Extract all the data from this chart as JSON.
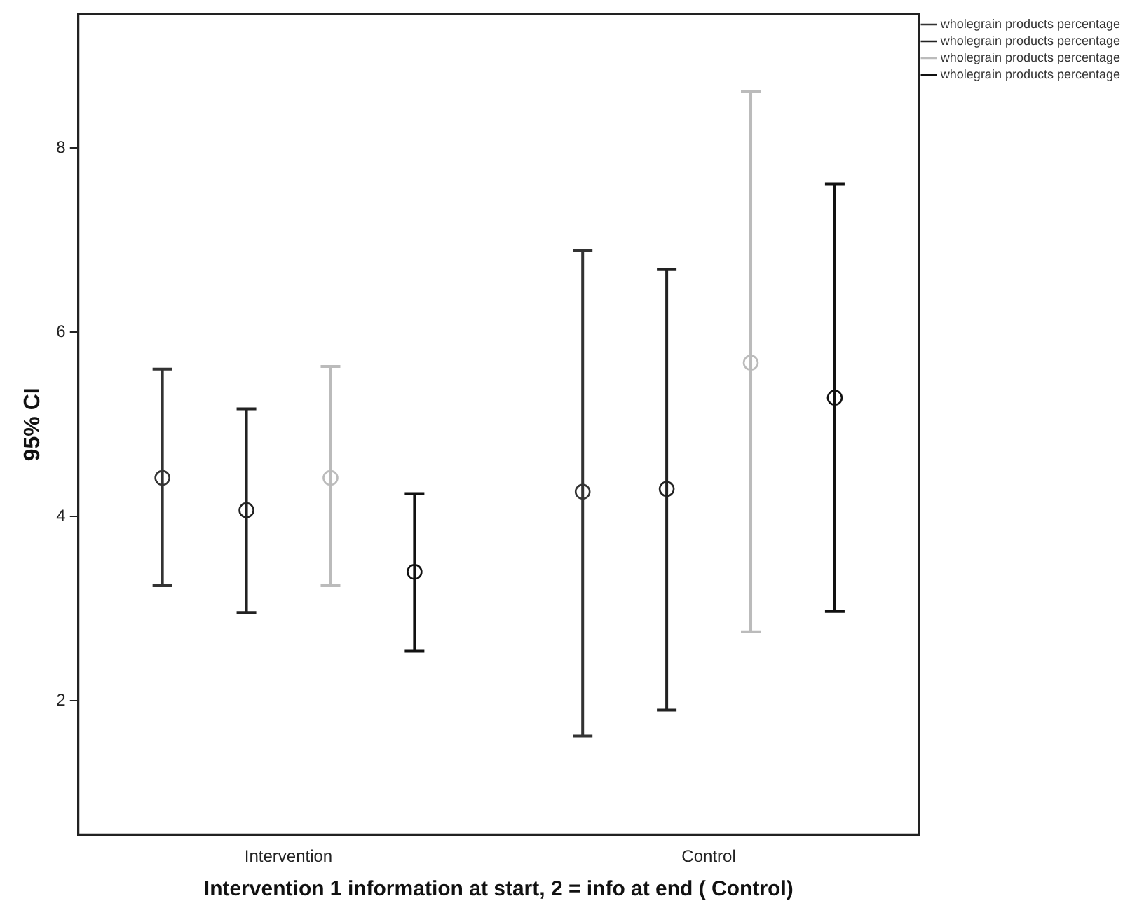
{
  "chart_data": {
    "type": "scatter",
    "xlabel": "Intervention 1 information at start, 2 = info at end ( Control)",
    "ylabel": "95% CI",
    "categories": [
      "Intervention",
      "Control"
    ],
    "series": [
      {
        "name": "wholegrain products percentage",
        "color": "#333333",
        "values": [
          4.42,
          4.27
        ],
        "errors": [
          [
            3.25,
            5.6
          ],
          [
            1.62,
            6.89
          ]
        ]
      },
      {
        "name": "wholegrain products percentage",
        "color": "#222222",
        "values": [
          4.07,
          4.3
        ],
        "errors": [
          [
            2.96,
            5.17
          ],
          [
            1.9,
            6.68
          ]
        ]
      },
      {
        "name": "wholegrain products percentage",
        "color": "#bbbbbb",
        "values": [
          4.42,
          5.67
        ],
        "errors": [
          [
            3.25,
            5.63
          ],
          [
            2.75,
            8.61
          ]
        ]
      },
      {
        "name": "wholegrain products percentage",
        "color": "#111111",
        "values": [
          3.4,
          5.29
        ],
        "errors": [
          [
            2.54,
            4.25
          ],
          [
            2.97,
            7.61
          ]
        ]
      }
    ],
    "ylim": [
      0.55,
      9.45
    ],
    "yticks": [
      2,
      4,
      6,
      8
    ],
    "grid": false,
    "legend": "top right",
    "marker": "circle"
  }
}
